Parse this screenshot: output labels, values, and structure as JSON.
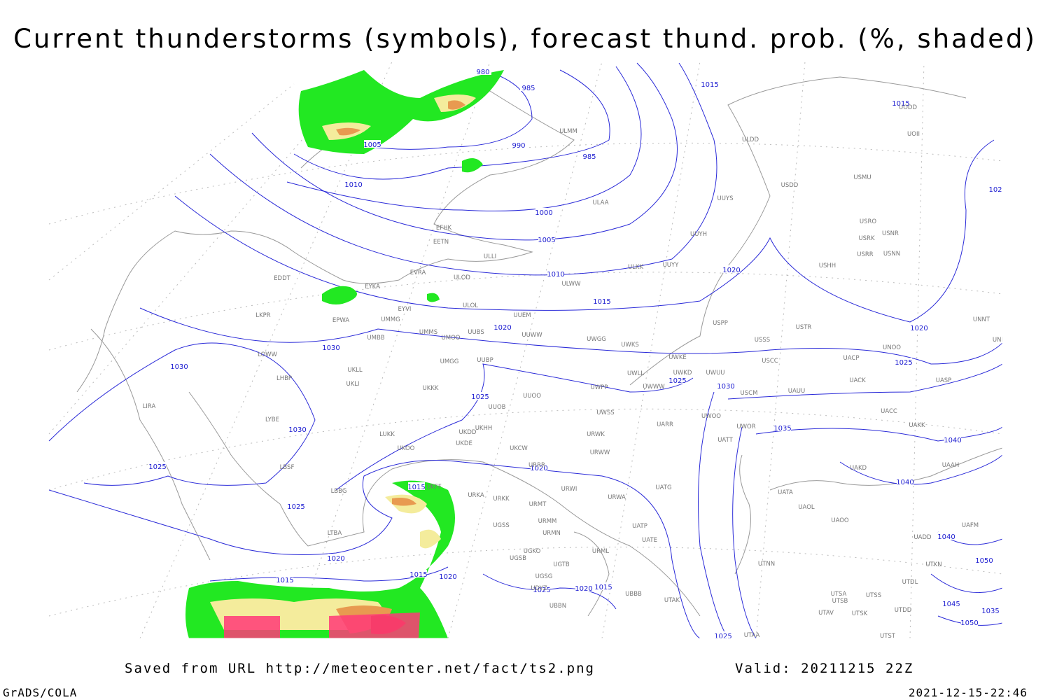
{
  "header": {
    "title": "Current thunderstorms (symbols), forecast thund. prob. (%, shaded)"
  },
  "isobar_labels": [
    "980",
    "985",
    "990",
    "985",
    "1005",
    "1010",
    "1000",
    "1005",
    "1010",
    "1015",
    "1015",
    "1015",
    "1020",
    "1020",
    "1020",
    "1025",
    "1025",
    "1025",
    "1030",
    "1030",
    "1030",
    "1030",
    "1035",
    "1040",
    "1040",
    "1025",
    "1025",
    "1020",
    "1015",
    "1020",
    "1015",
    "1015",
    "1020",
    "1025",
    "1020",
    "1015",
    "1040",
    "1050",
    "1045",
    "1050",
    "1035",
    "1025",
    "102"
  ],
  "stations": [
    "ULMM",
    "ULDD",
    "UODD",
    "UOII",
    "USDD",
    "USMU",
    "ULAA",
    "UUYS",
    "USRO",
    "USRK",
    "USNR",
    "USRR",
    "USNN",
    "UUYH",
    "EFHK",
    "EETN",
    "ULLI",
    "USHH",
    "ULKK",
    "UUYY",
    "EVRA",
    "ULOD",
    "ULWW",
    "EDDT",
    "EYKA",
    "ULOL",
    "EYVI",
    "UUEM",
    "LKPR",
    "EPWA",
    "UMMG",
    "UMMS",
    "UMOO",
    "UUBS",
    "UUWW",
    "UWGG",
    "UWKS",
    "USSS",
    "USTR",
    "USPP",
    "UNOO",
    "UNNT",
    "UNBB",
    "UMBB",
    "UUBP",
    "UMGG",
    "UWKE",
    "UWKD",
    "UWUU",
    "USCC",
    "UACP",
    "UACK",
    "UASP",
    "LOWW",
    "LHBP",
    "UKLL",
    "UKLI",
    "UKKK",
    "UUOO",
    "UWPP",
    "UWWW",
    "UWLL",
    "USCM",
    "UAUU",
    "LIRA",
    "UUOB",
    "UWSS",
    "UACC",
    "UAKK",
    "LYBE",
    "LUKK",
    "UKHH",
    "UKDD",
    "UKDE",
    "UKOO",
    "UKCW",
    "URWK",
    "UARR",
    "UWOO",
    "UWOR",
    "UATT",
    "LBSF",
    "URRR",
    "URWW",
    "UAKD",
    "UAAH",
    "LBBG",
    "UKFF",
    "URKA",
    "URKK",
    "URWI",
    "URMT",
    "URWA",
    "UATG",
    "UATA",
    "UAOL",
    "UAOO",
    "URMM",
    "UGSS",
    "URMN",
    "UATP",
    "UATE",
    "UAFM",
    "UADD",
    "LTBA",
    "UGKO",
    "UGSB",
    "UGTB",
    "URML",
    "UTNN",
    "UTKN",
    "UGSG",
    "UBBB",
    "UTDL",
    "UDYZ",
    "UBBN",
    "UTAK",
    "UTSA",
    "UTSB",
    "UTSS",
    "UTDD",
    "UTAV",
    "UTSK",
    "UTST",
    "UTAA"
  ],
  "footer": {
    "source": "Saved from URL http://meteocenter.net/fact/ts2.png",
    "valid": "Valid: 20211215 22Z",
    "software": "GrADS/COLA",
    "timestamp": "2021-12-15-22:46"
  }
}
